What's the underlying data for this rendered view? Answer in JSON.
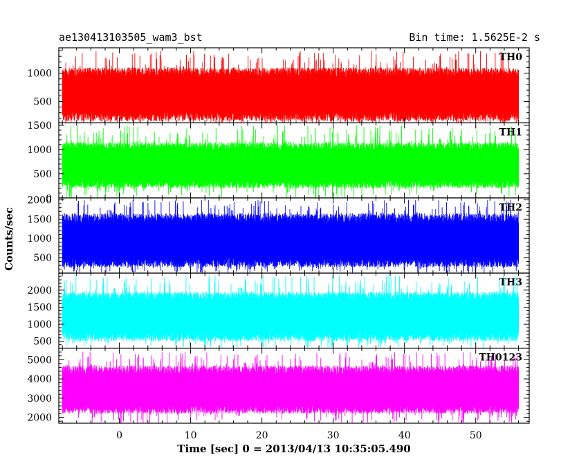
{
  "chart_data": {
    "type": "line",
    "title": "ae130413103505_wam3_bst",
    "bin_time_label": "Bin time: 1.5625E-2 s",
    "xlabel": "Time [sec] 0 = 2013/04/13 10:35:05.490",
    "ylabel": "Counts/sec",
    "xlim": [
      -8.5,
      57.5
    ],
    "x_data_range": [
      -8,
      56
    ],
    "x_ticks": [
      0,
      10,
      20,
      30,
      40,
      50
    ],
    "x_tick_labels": [
      "0",
      "10",
      "20",
      "30",
      "40",
      "50"
    ],
    "grid": false,
    "panels": [
      {
        "name": "TH0",
        "color": "#ff0000",
        "ylim": [
          120,
          1450
        ],
        "y_ticks": [
          500,
          1000
        ],
        "y_tick_labels": [
          "500",
          "1000"
        ],
        "typical_range": [
          150,
          1100
        ],
        "mean": 620,
        "peak": 1400
      },
      {
        "name": "TH1",
        "color": "#00ff00",
        "ylim": [
          0,
          1550
        ],
        "y_ticks": [
          0,
          500,
          1000,
          1500
        ],
        "y_tick_labels": [
          "0",
          "500",
          "1000",
          "1500"
        ],
        "typical_range": [
          200,
          1150
        ],
        "mean": 650,
        "peak": 1500
      },
      {
        "name": "TH2",
        "color": "#0000ff",
        "ylim": [
          100,
          2050
        ],
        "y_ticks": [
          500,
          1000,
          1500,
          2000
        ],
        "y_tick_labels": [
          "500",
          "1000",
          "1500",
          "2000"
        ],
        "typical_range": [
          250,
          1650
        ],
        "mean": 920,
        "peak": 2000
      },
      {
        "name": "TH3",
        "color": "#00ffff",
        "ylim": [
          300,
          2500
        ],
        "y_ticks": [
          500,
          1000,
          1500,
          2000
        ],
        "y_tick_labels": [
          "500",
          "1000",
          "1500",
          "2000"
        ],
        "typical_range": [
          500,
          1950
        ],
        "mean": 1250,
        "peak": 2450
      },
      {
        "name": "TH0123",
        "color": "#ff00ff",
        "ylim": [
          1700,
          5600
        ],
        "y_ticks": [
          2000,
          3000,
          4000,
          5000
        ],
        "y_tick_labels": [
          "2000",
          "3000",
          "4000",
          "5000"
        ],
        "typical_range": [
          2200,
          4700
        ],
        "mean": 3350,
        "peak": 5400
      }
    ]
  }
}
